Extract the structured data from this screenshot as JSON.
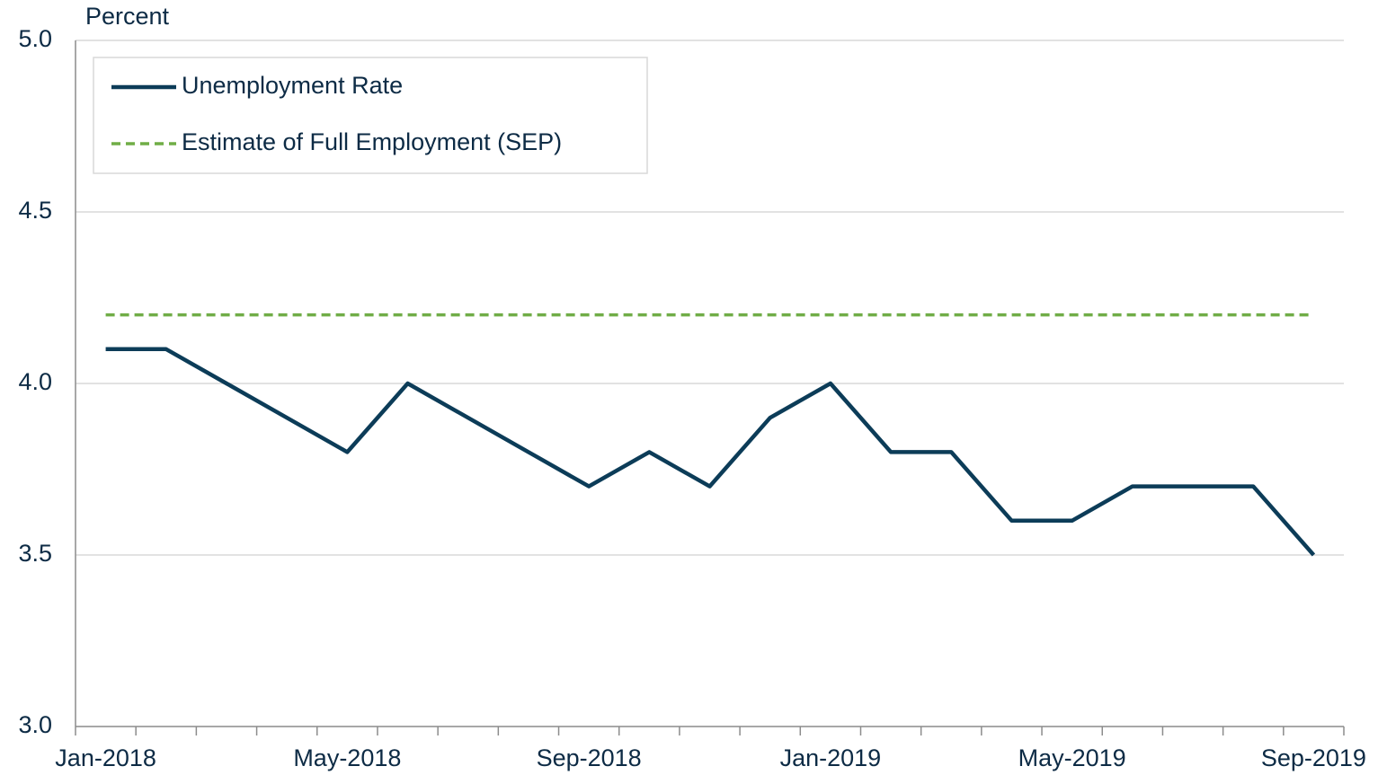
{
  "chart_data": {
    "type": "line",
    "y_axis_label": "Percent",
    "categories": [
      "Jan-2018",
      null,
      null,
      null,
      "May-2018",
      null,
      null,
      null,
      "Sep-2018",
      null,
      null,
      null,
      "Jan-2019",
      null,
      null,
      null,
      "May-2019",
      null,
      null,
      null,
      "Sep-2019"
    ],
    "series": [
      {
        "name": "Unemployment Rate",
        "color": "#0c3c58",
        "linestyle": "solid",
        "values": [
          4.1,
          4.1,
          4.0,
          3.9,
          3.8,
          4.0,
          3.9,
          3.8,
          3.7,
          3.8,
          3.7,
          3.9,
          4.0,
          3.8,
          3.8,
          3.6,
          3.6,
          3.7,
          3.7,
          3.7,
          3.5
        ]
      },
      {
        "name": "Estimate of Full Employment (SEP)",
        "color": "#70ad47",
        "linestyle": "dashed",
        "values": [
          4.2,
          4.2,
          4.2,
          4.2,
          4.2,
          4.2,
          4.2,
          4.2,
          4.2,
          4.2,
          4.2,
          4.2,
          4.2,
          4.2,
          4.2,
          4.2,
          4.2,
          4.2,
          4.2,
          4.2,
          4.2
        ]
      }
    ],
    "ylim": [
      3,
      5
    ],
    "yticks": [
      {
        "value": 3,
        "label": "3.0"
      },
      3.5,
      {
        "value": 4,
        "label": "4.0"
      },
      4.5,
      {
        "value": 5,
        "label": "5.0"
      }
    ],
    "grid": true,
    "legend": "upper left"
  }
}
